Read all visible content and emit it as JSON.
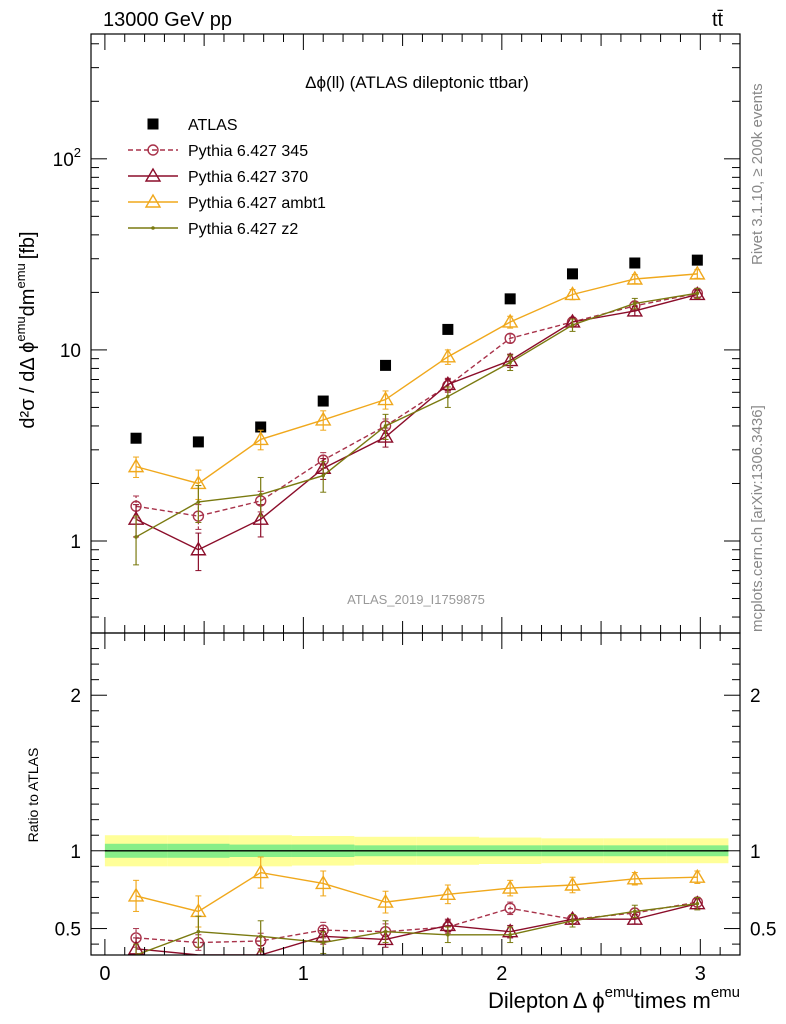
{
  "header": {
    "energy_label": "13000 GeV pp",
    "process_label": "tt̄",
    "rivet_label": "Rivet 3.1.10, ≥ 200k events",
    "mcplots_label": "mcplots.cern.ch [arXiv:1306.3436]",
    "analysis_label": "ATLAS_2019_I1759875"
  },
  "colors": {
    "atlas": "#000000",
    "p345": "#a8324a",
    "p370": "#8b0d2a",
    "ambt1": "#f0a81c",
    "z2": "#7a7a10",
    "band_inner": "#88ee88",
    "band_outer": "#ffff99"
  },
  "chart_data": [
    {
      "type": "scatter",
      "panel": "main",
      "title": "Δϕ(ll) (ATLAS dileptonic ttbar)",
      "ylabel_main": "d²σ / dΔ ϕ",
      "ylabel_sup": "emu",
      "ylabel_tail": "dm",
      "ylabel_unit": "[fb]",
      "yscale": "log",
      "xlim": [
        -0.07,
        3.2
      ],
      "ylim": [
        0.33,
        450
      ],
      "yticks": [
        "1",
        "10",
        "10²"
      ],
      "legend_position": "top-left",
      "x": [
        0.157,
        0.471,
        0.785,
        1.1,
        1.414,
        1.728,
        2.042,
        2.356,
        2.67,
        2.985
      ],
      "series": [
        {
          "name": "ATLAS",
          "key": "atlas",
          "style": "square",
          "values": [
            3.45,
            3.3,
            3.95,
            5.4,
            8.3,
            12.8,
            18.5,
            25.0,
            28.5,
            29.5
          ],
          "errors": [
            0.1,
            0.1,
            0.1,
            0.15,
            0.2,
            0.3,
            0.4,
            0.5,
            0.6,
            0.6
          ]
        },
        {
          "name": "Pythia 6.427 345",
          "key": "p345",
          "style": "circle-dashed",
          "values": [
            1.52,
            1.35,
            1.62,
            2.65,
            4.0,
            6.5,
            11.5,
            14.0,
            17.0,
            19.8
          ],
          "errors": [
            0.2,
            0.2,
            0.2,
            0.25,
            0.35,
            0.5,
            0.6,
            0.7,
            0.8,
            0.9
          ]
        },
        {
          "name": "Pythia 6.427 370",
          "key": "p370",
          "style": "triangle",
          "values": [
            1.3,
            0.9,
            1.3,
            2.4,
            3.5,
            6.6,
            8.8,
            14.0,
            16.0,
            19.5
          ],
          "errors": [
            0.25,
            0.2,
            0.25,
            0.3,
            0.4,
            0.5,
            0.7,
            0.8,
            0.9,
            1.0
          ]
        },
        {
          "name": "Pythia 6.427 ambt1",
          "key": "ambt1",
          "style": "triangle",
          "values": [
            2.45,
            2.0,
            3.4,
            4.3,
            5.5,
            9.2,
            14.0,
            19.5,
            23.5,
            25.0
          ],
          "errors": [
            0.3,
            0.35,
            0.4,
            0.5,
            0.6,
            0.8,
            1.0,
            1.2,
            1.3,
            1.3
          ]
        },
        {
          "name": "Pythia 6.427 z2",
          "key": "z2",
          "style": "dot",
          "values": [
            1.05,
            1.6,
            1.75,
            2.2,
            4.0,
            5.7,
            8.6,
            13.5,
            17.5,
            19.8
          ],
          "errors": [
            0.3,
            0.35,
            0.4,
            0.4,
            0.6,
            0.7,
            0.8,
            1.0,
            1.1,
            1.2
          ]
        }
      ]
    },
    {
      "type": "scatter",
      "panel": "ratio",
      "ylabel": "Ratio to ATLAS",
      "xlabel_main": "Dilepton",
      "xlabel_phi": "Δ ϕ",
      "xlabel_sup1": "emu",
      "xlabel_mid": "times m",
      "xlabel_sup2": "emu",
      "ylim": [
        0.33,
        2.4
      ],
      "yticks": [
        "0.5",
        "1",
        "2"
      ],
      "xticks": [
        "0",
        "1",
        "2",
        "3"
      ],
      "x": [
        0.157,
        0.471,
        0.785,
        1.1,
        1.414,
        1.728,
        2.042,
        2.356,
        2.67,
        2.985
      ],
      "band_inner": [
        0.045,
        0.045,
        0.04,
        0.04,
        0.035,
        0.035,
        0.035,
        0.035,
        0.035,
        0.035
      ],
      "band_outer": [
        0.1,
        0.1,
        0.1,
        0.095,
        0.09,
        0.09,
        0.085,
        0.08,
        0.08,
        0.08
      ],
      "series": [
        {
          "name": "Pythia 6.427 345",
          "key": "p345",
          "style": "circle-dashed",
          "values": [
            0.44,
            0.41,
            0.42,
            0.49,
            0.48,
            0.51,
            0.63,
            0.56,
            0.6,
            0.67
          ],
          "errors": [
            0.06,
            0.05,
            0.05,
            0.05,
            0.05,
            0.04,
            0.04,
            0.03,
            0.03,
            0.03
          ]
        },
        {
          "name": "Pythia 6.427 370",
          "key": "p370",
          "style": "triangle",
          "values": [
            0.37,
            0.27,
            0.33,
            0.45,
            0.43,
            0.52,
            0.48,
            0.56,
            0.56,
            0.66
          ],
          "errors": [
            0.07,
            0.06,
            0.06,
            0.05,
            0.05,
            0.04,
            0.04,
            0.03,
            0.03,
            0.03
          ]
        },
        {
          "name": "Pythia 6.427 ambt1",
          "key": "ambt1",
          "style": "triangle",
          "values": [
            0.71,
            0.61,
            0.86,
            0.79,
            0.67,
            0.72,
            0.76,
            0.78,
            0.82,
            0.83
          ],
          "errors": [
            0.1,
            0.1,
            0.1,
            0.08,
            0.07,
            0.06,
            0.05,
            0.05,
            0.04,
            0.04
          ]
        },
        {
          "name": "Pythia 6.427 z2",
          "key": "z2",
          "style": "dot",
          "values": [
            0.31,
            0.48,
            0.45,
            0.41,
            0.48,
            0.46,
            0.46,
            0.55,
            0.61,
            0.66
          ],
          "errors": [
            0.09,
            0.1,
            0.1,
            0.07,
            0.07,
            0.05,
            0.05,
            0.04,
            0.04,
            0.04
          ]
        }
      ]
    }
  ]
}
